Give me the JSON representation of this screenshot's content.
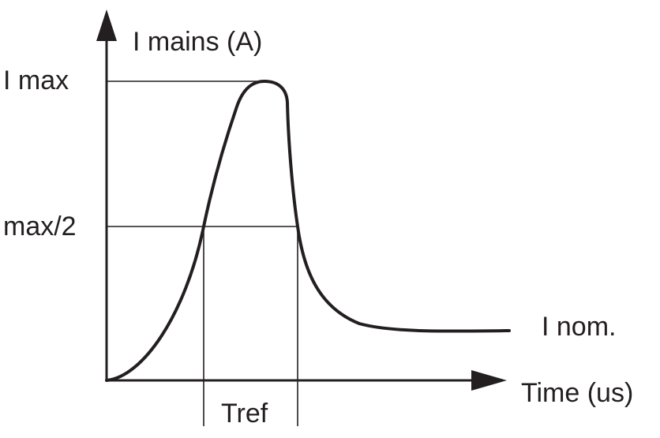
{
  "diagram": {
    "y_axis_label": "I mains (A)",
    "x_axis_label": "Time (us)",
    "level_max_label": "I max",
    "level_half_label": "max/2",
    "curve_end_label": "I nom.",
    "interval_label": "Tref",
    "colors": {
      "ink": "#231f20",
      "background": "#ffffff"
    }
  }
}
